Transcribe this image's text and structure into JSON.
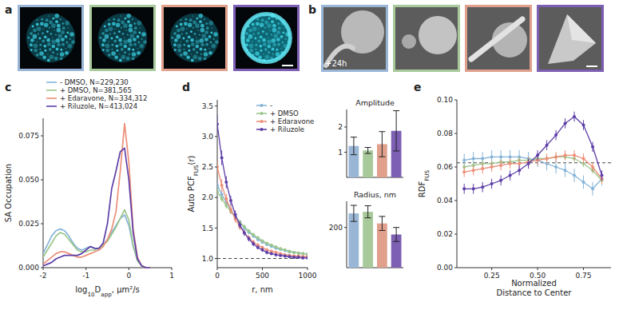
{
  "images": [
    {
      "label": "a",
      "frames": [
        {
          "color": "#9ab6d6"
        },
        {
          "color": "#a8c99a"
        },
        {
          "color": "#e0a08c"
        },
        {
          "color": "#7d5fb4"
        }
      ]
    },
    {
      "label": "b",
      "frames": [
        {
          "color": "#9ab6d6",
          "text": "+24h"
        },
        {
          "color": "#a8c99a"
        },
        {
          "color": "#e0a08c"
        },
        {
          "color": "#7d5fb4"
        }
      ]
    }
  ],
  "chart_data": [
    {
      "type": "line",
      "label": "c",
      "xlabel": [
        {
          "text": "log"
        },
        {
          "text": "10",
          "sub": true
        },
        {
          "text": "D"
        },
        {
          "text": "app",
          "sub": true
        },
        {
          "text": ", µm²/s"
        }
      ],
      "ylabel": "SA Occupation",
      "x": [
        -2,
        -1.9,
        -1.8,
        -1.7,
        -1.6,
        -1.5,
        -1.4,
        -1.3,
        -1.2,
        -1.1,
        -1,
        -0.9,
        -0.8,
        -0.7,
        -0.6,
        -0.5,
        -0.4,
        -0.3,
        -0.2,
        -0.1,
        0,
        0.1,
        0.2,
        0.3,
        0.4,
        0.5
      ],
      "xlim": [
        -2,
        1
      ],
      "xticks": [
        -2,
        -1,
        0,
        1
      ],
      "ylim": [
        0,
        0.085
      ],
      "yticks": [
        {
          "value": 0,
          "label": "0.000"
        },
        {
          "value": 0.025,
          "label": "0.025"
        },
        {
          "value": 0.05,
          "label": "0.050"
        },
        {
          "value": 0.075,
          "label": "0.075"
        }
      ],
      "legend": "top-left",
      "series": [
        {
          "name": "- DMSO, N=229,230",
          "color": "#86b4d8",
          "values": [
            0.008,
            0.013,
            0.018,
            0.021,
            0.022,
            0.021,
            0.018,
            0.014,
            0.011,
            0.01,
            0.011,
            0.012,
            0.011,
            0.011,
            0.013,
            0.016,
            0.02,
            0.024,
            0.028,
            0.03,
            0.024,
            0.012,
            0.004,
            0.001,
            0,
            0
          ]
        },
        {
          "name": "+ DMSO, N=381,565",
          "color": "#9cc68c",
          "values": [
            0.006,
            0.01,
            0.014,
            0.018,
            0.02,
            0.019,
            0.016,
            0.013,
            0.01,
            0.009,
            0.009,
            0.01,
            0.01,
            0.011,
            0.013,
            0.015,
            0.019,
            0.023,
            0.028,
            0.033,
            0.027,
            0.013,
            0.004,
            0.001,
            0,
            0
          ]
        },
        {
          "name": "+ Edaravone, N=334,312",
          "color": "#ec8f78",
          "values": [
            0.002,
            0.004,
            0.006,
            0.008,
            0.009,
            0.009,
            0.008,
            0.007,
            0.006,
            0.006,
            0.007,
            0.008,
            0.009,
            0.01,
            0.012,
            0.016,
            0.022,
            0.032,
            0.055,
            0.082,
            0.06,
            0.022,
            0.006,
            0.001,
            0,
            0
          ]
        },
        {
          "name": "+ Riluzole, N=413,024",
          "color": "#5e3fa8",
          "values": [
            0.001,
            0.002,
            0.003,
            0.005,
            0.006,
            0.007,
            0.007,
            0.007,
            0.007,
            0.008,
            0.01,
            0.012,
            0.011,
            0.011,
            0.014,
            0.025,
            0.045,
            0.055,
            0.066,
            0.068,
            0.05,
            0.02,
            0.005,
            0.001,
            0,
            0
          ]
        }
      ]
    },
    {
      "type": "line",
      "label": "d",
      "marker": "circle",
      "xlabel": "r, nm",
      "ylabel": [
        {
          "text": "Auto PCF"
        },
        {
          "text": "FUS",
          "sub": true
        },
        {
          "text": "(r)"
        }
      ],
      "x": [
        0,
        50,
        100,
        150,
        200,
        250,
        300,
        350,
        400,
        450,
        500,
        550,
        600,
        650,
        700,
        750,
        800,
        850,
        900,
        950,
        1000
      ],
      "xlim": [
        0,
        1000
      ],
      "xticks": [
        0,
        500,
        1000
      ],
      "ylim": [
        0.85,
        3.6
      ],
      "yticks": [
        {
          "value": 1,
          "label": "1.0"
        },
        1.5,
        {
          "value": 2,
          "label": "2.0"
        },
        2.5,
        {
          "value": 3,
          "label": "3.0"
        },
        3.5
      ],
      "hline": 1,
      "legend": "top-right",
      "series": [
        {
          "name": "-",
          "color": "#86b4d8",
          "values": [
            2.2,
            2.05,
            1.92,
            1.8,
            1.69,
            1.59,
            1.5,
            1.43,
            1.37,
            1.31,
            1.27,
            1.23,
            1.2,
            1.17,
            1.15,
            1.13,
            1.11,
            1.1,
            1.09,
            1.08,
            1.07
          ],
          "errors": [
            0.08,
            0.07,
            0.06,
            0.05,
            0.05,
            0.04,
            0.04,
            0.03,
            0.03,
            0.03,
            0.02,
            0.02,
            0.02,
            0.02,
            0.02,
            0.02,
            0.02,
            0.02,
            0.02,
            0.02,
            0.02
          ]
        },
        {
          "name": "+ DMSO",
          "color": "#9cc68c",
          "values": [
            2.1,
            1.98,
            1.87,
            1.77,
            1.68,
            1.6,
            1.52,
            1.45,
            1.39,
            1.34,
            1.29,
            1.25,
            1.22,
            1.19,
            1.16,
            1.14,
            1.12,
            1.1,
            1.09,
            1.08,
            1.07
          ],
          "errors": [
            0.06,
            0.05,
            0.05,
            0.04,
            0.04,
            0.03,
            0.03,
            0.03,
            0.03,
            0.02,
            0.02,
            0.02,
            0.02,
            0.02,
            0.02,
            0.02,
            0.02,
            0.02,
            0.02,
            0.02,
            0.02
          ]
        },
        {
          "name": "+ Edaravone",
          "color": "#ec8f78",
          "values": [
            2.5,
            2.2,
            1.98,
            1.8,
            1.65,
            1.52,
            1.42,
            1.34,
            1.27,
            1.22,
            1.18,
            1.14,
            1.12,
            1.1,
            1.08,
            1.06,
            1.05,
            1.04,
            1.04,
            1.03,
            1.03
          ],
          "errors": [
            0.12,
            0.1,
            0.08,
            0.07,
            0.06,
            0.05,
            0.04,
            0.04,
            0.03,
            0.03,
            0.03,
            0.02,
            0.02,
            0.02,
            0.02,
            0.02,
            0.02,
            0.02,
            0.02,
            0.02,
            0.02
          ]
        },
        {
          "name": "+ Riluzole",
          "color": "#5e3fa8",
          "values": [
            3.2,
            2.65,
            2.25,
            1.95,
            1.72,
            1.55,
            1.42,
            1.32,
            1.24,
            1.18,
            1.14,
            1.1,
            1.08,
            1.06,
            1.05,
            1.04,
            1.03,
            1.02,
            1.02,
            1.01,
            1.01
          ],
          "errors": [
            0.15,
            0.12,
            0.1,
            0.08,
            0.07,
            0.06,
            0.05,
            0.04,
            0.04,
            0.03,
            0.03,
            0.03,
            0.02,
            0.02,
            0.02,
            0.02,
            0.02,
            0.02,
            0.02,
            0.02,
            0.02
          ]
        }
      ]
    },
    {
      "type": "bar",
      "title": "Amplitude",
      "categories": [
        null,
        null,
        null,
        null
      ],
      "values": [
        1.25,
        1.07,
        1.32,
        1.85
      ],
      "errors": [
        0.35,
        0.12,
        0.5,
        0.8
      ],
      "colors": [
        "#9ab6d6",
        "#a8c99a",
        "#e0a08c",
        "#7d5fb4"
      ],
      "ylim": [
        0,
        2.7
      ],
      "yticks": [
        1,
        2
      ]
    },
    {
      "type": "bar",
      "title": "Radius, nm",
      "categories": [
        null,
        null,
        null,
        null
      ],
      "values": [
        270,
        278,
        220,
        165
      ],
      "errors": [
        40,
        30,
        35,
        35
      ],
      "colors": [
        "#9ab6d6",
        "#a8c99a",
        "#e0a08c",
        "#7d5fb4"
      ],
      "ylim": [
        0,
        330
      ],
      "yticks": [
        200
      ]
    },
    {
      "type": "line",
      "label": "e",
      "marker": "circle",
      "xlabel": [
        "Normalized",
        "Distance to Center"
      ],
      "ylabel": [
        {
          "text": "RDF"
        },
        {
          "text": "FUS",
          "sub": true
        }
      ],
      "x": [
        0.1,
        0.15,
        0.2,
        0.25,
        0.3,
        0.35,
        0.4,
        0.45,
        0.5,
        0.55,
        0.6,
        0.65,
        0.7,
        0.75,
        0.8,
        0.85
      ],
      "xlim": [
        0.06,
        0.9
      ],
      "xticks": [
        0.25,
        {
          "value": 0.5,
          "label": "0.50"
        },
        0.75
      ],
      "ylim": [
        0,
        0.1
      ],
      "yticks": [
        {
          "value": 0,
          "label": "0.00"
        },
        {
          "value": 0.02,
          "label": "0.02"
        },
        {
          "value": 0.04,
          "label": "0.04"
        },
        {
          "value": 0.06,
          "label": "0.06"
        },
        {
          "value": 0.08,
          "label": "0.08"
        },
        {
          "value": 0.1,
          "label": "0.10"
        }
      ],
      "hline": 0.0625,
      "series": [
        {
          "name": "-",
          "color": "#86b4d8",
          "values": [
            0.064,
            0.065,
            0.065,
            0.066,
            0.066,
            0.066,
            0.066,
            0.065,
            0.064,
            0.062,
            0.06,
            0.058,
            0.055,
            0.051,
            0.047,
            0.053
          ],
          "errors": [
            0.004,
            0.004,
            0.004,
            0.004,
            0.004,
            0.004,
            0.004,
            0.004,
            0.004,
            0.004,
            0.004,
            0.004,
            0.004,
            0.004,
            0.004,
            0.004
          ]
        },
        {
          "name": "+ DMSO",
          "color": "#9cc68c",
          "values": [
            0.06,
            0.061,
            0.062,
            0.062,
            0.063,
            0.063,
            0.064,
            0.064,
            0.065,
            0.065,
            0.066,
            0.066,
            0.065,
            0.062,
            0.058,
            0.052
          ],
          "errors": [
            0.002,
            0.002,
            0.002,
            0.002,
            0.002,
            0.002,
            0.002,
            0.002,
            0.002,
            0.002,
            0.002,
            0.002,
            0.002,
            0.002,
            0.002,
            0.002
          ]
        },
        {
          "name": "+ Edaravone",
          "color": "#ec8f78",
          "values": [
            0.057,
            0.058,
            0.059,
            0.06,
            0.061,
            0.062,
            0.062,
            0.063,
            0.064,
            0.065,
            0.066,
            0.067,
            0.067,
            0.065,
            0.06,
            0.053
          ],
          "errors": [
            0.003,
            0.003,
            0.003,
            0.003,
            0.003,
            0.003,
            0.003,
            0.003,
            0.003,
            0.003,
            0.003,
            0.003,
            0.003,
            0.003,
            0.003,
            0.003
          ]
        },
        {
          "name": "+ Riluzole",
          "color": "#5e3fa8",
          "values": [
            0.047,
            0.047,
            0.048,
            0.05,
            0.052,
            0.055,
            0.058,
            0.062,
            0.067,
            0.073,
            0.079,
            0.086,
            0.09,
            0.085,
            0.072,
            0.055
          ],
          "errors": [
            0.003,
            0.003,
            0.003,
            0.003,
            0.003,
            0.003,
            0.003,
            0.003,
            0.003,
            0.003,
            0.003,
            0.003,
            0.003,
            0.003,
            0.003,
            0.003
          ]
        }
      ]
    }
  ]
}
